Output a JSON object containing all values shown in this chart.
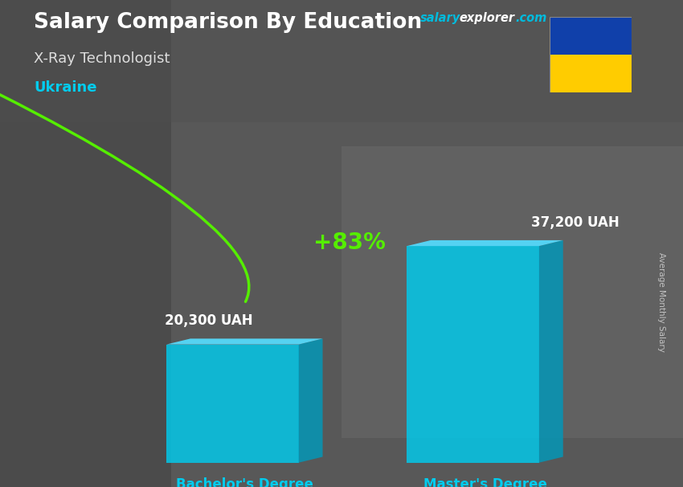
{
  "title": "Salary Comparison By Education",
  "subtitle": "X-Ray Technologist",
  "country": "Ukraine",
  "categories": [
    "Bachelor's Degree",
    "Master's Degree"
  ],
  "values": [
    20300,
    37200
  ],
  "value_labels": [
    "20,300 UAH",
    "37,200 UAH"
  ],
  "pct_change": "+83%",
  "bar_color_face": "#00CCEE",
  "bar_color_side": "#0099BB",
  "bar_color_top": "#55DDFF",
  "bar_alpha": 0.82,
  "title_color": "#FFFFFF",
  "subtitle_color": "#DDDDDD",
  "country_color": "#00CCEE",
  "label_color": "#FFFFFF",
  "xlabel_color": "#00CCEE",
  "arrow_color": "#55EE00",
  "pct_color": "#55EE00",
  "bg_color": "#606060",
  "ylabel_text": "Average Monthly Salary",
  "flag_blue": "#1040AA",
  "flag_yellow": "#FFCC00",
  "watermark_salary_color": "#00BBDD",
  "watermark_explorer_color": "#FFFFFF",
  "watermark_com_color": "#00BBDD"
}
